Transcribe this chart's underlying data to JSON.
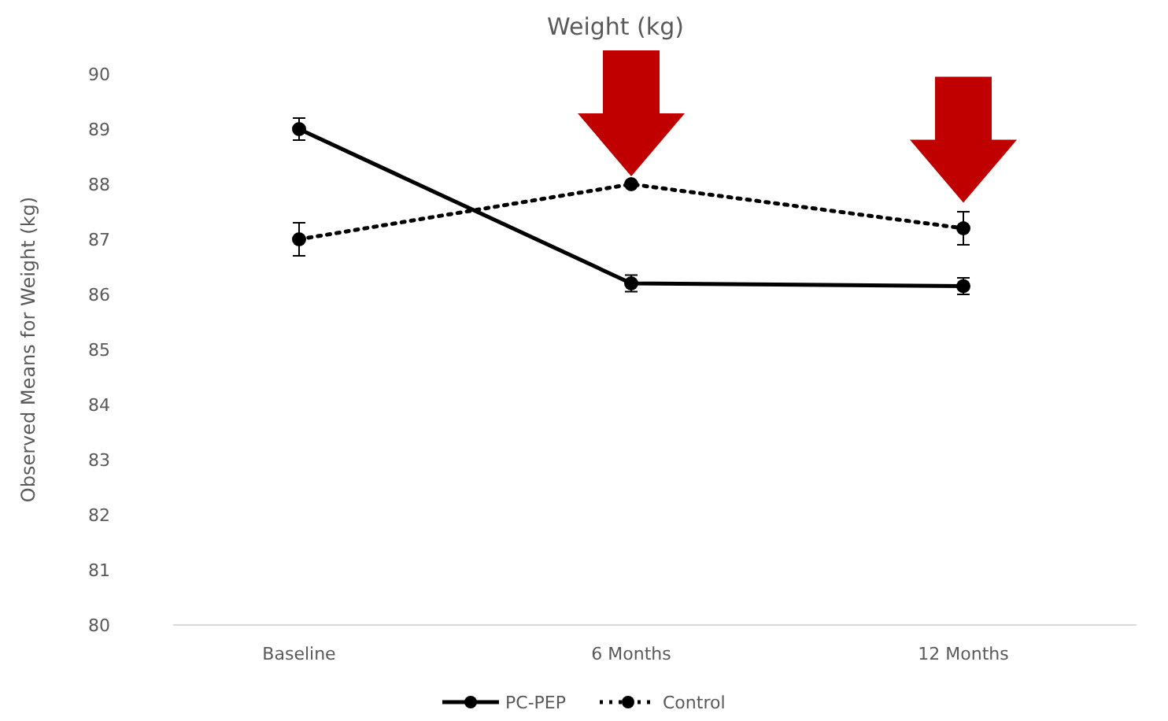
{
  "chart_data": {
    "type": "line",
    "title": "Weight (kg)",
    "ylabel": "Observed Means for Weight (kg)",
    "categories": [
      "Baseline",
      "6 Months",
      "12 Months"
    ],
    "series": [
      {
        "name": "PC-PEP",
        "color": "#000000",
        "values": [
          89.0,
          86.2,
          86.15
        ],
        "errors": [
          0.2,
          0.15,
          0.15
        ],
        "line_style": "solid"
      },
      {
        "name": "Control",
        "color": "#000000",
        "values": [
          87.0,
          88.0,
          87.2
        ],
        "errors": [
          0.3,
          null,
          0.3
        ],
        "line_style": "dotted"
      }
    ],
    "ylim": [
      80,
      90
    ],
    "yticks": [
      80,
      81,
      82,
      83,
      84,
      85,
      86,
      87,
      88,
      89,
      90
    ],
    "grid": false,
    "legend": "bottom",
    "marker": "circle"
  }
}
